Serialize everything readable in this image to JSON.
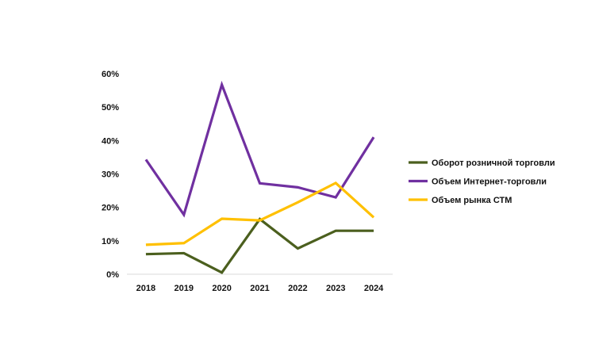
{
  "chart_data": {
    "type": "line",
    "categories": [
      "2018",
      "2019",
      "2020",
      "2021",
      "2022",
      "2023",
      "2024"
    ],
    "series": [
      {
        "name": "Оборот розничной торговли",
        "color": "#4B5F1E",
        "values": [
          6,
          6.3,
          0.5,
          16.5,
          7.7,
          13,
          13
        ]
      },
      {
        "name": "Объем Интернет-торговли",
        "color": "#7030A0",
        "values": [
          34.3,
          17.8,
          56.7,
          27.2,
          26,
          23,
          41
        ]
      },
      {
        "name": "Объем рынка СТМ",
        "color": "#FFC000",
        "values": [
          8.8,
          9.3,
          16.6,
          16.1,
          21.5,
          27.3,
          17
        ]
      }
    ],
    "y_ticks": [
      "0%",
      "10%",
      "20%",
      "30%",
      "40%",
      "50%",
      "60%"
    ],
    "ylim": [
      0,
      60
    ],
    "legend_position": "right",
    "grid": false,
    "title": "",
    "xlabel": "",
    "ylabel": ""
  }
}
